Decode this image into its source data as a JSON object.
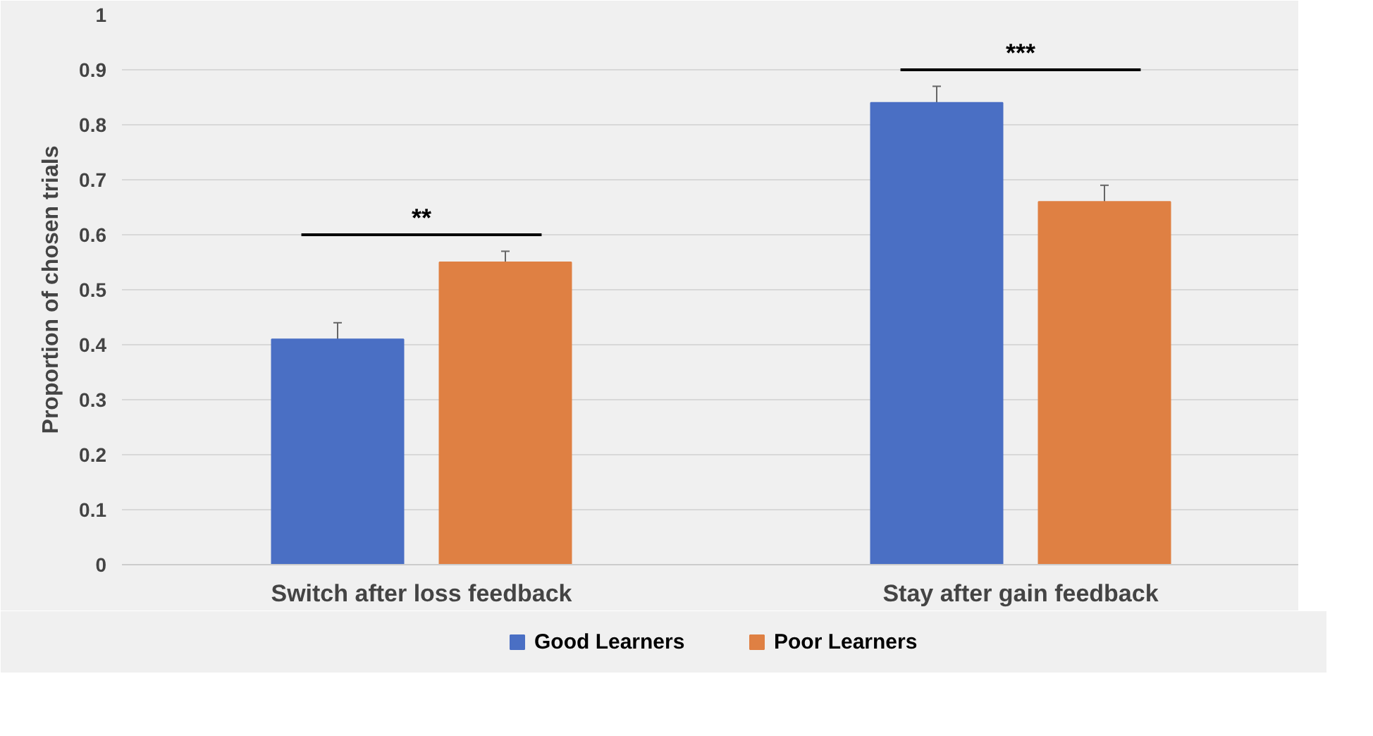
{
  "chart_data": {
    "type": "bar",
    "ylabel": "Proportion of chosen trials",
    "categories": [
      "Switch after loss feedback",
      "Stay after gain feedback"
    ],
    "series": [
      {
        "name": "Good Learners",
        "color": "#4a6fc4",
        "values": [
          0.41,
          0.84
        ],
        "errors": [
          0.03,
          0.03
        ]
      },
      {
        "name": "Poor Learners",
        "color": "#df8043",
        "values": [
          0.55,
          0.66
        ],
        "errors": [
          0.02,
          0.03
        ]
      }
    ],
    "ylim": [
      0,
      1
    ],
    "yticks": [
      0,
      0.1,
      0.2,
      0.3,
      0.4,
      0.5,
      0.6,
      0.7,
      0.8,
      0.9,
      1
    ],
    "grid": "y",
    "legend": "bottom",
    "annotations": [
      "**",
      "***"
    ]
  }
}
